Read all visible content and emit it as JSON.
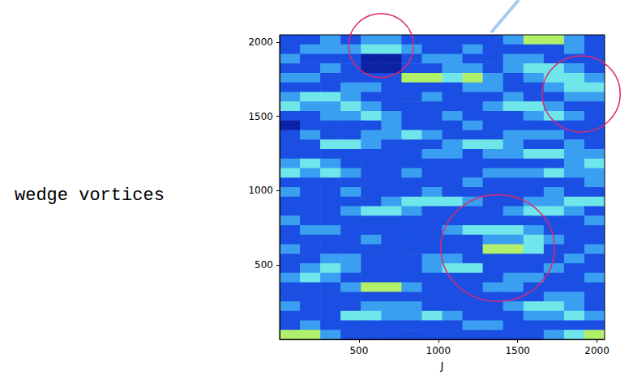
{
  "chart_data": {
    "type": "heatmap",
    "annotation": "wedge vortices",
    "xlabel": "J",
    "xlim": [
      0,
      2048
    ],
    "ylim": [
      0,
      2048
    ],
    "xticks": [
      500,
      1000,
      1500,
      2000
    ],
    "yticks": [
      500,
      1000,
      1500,
      2000
    ],
    "grid": false,
    "x": [
      64,
      192,
      320,
      448,
      576,
      704,
      832,
      960,
      1088,
      1216,
      1344,
      1472,
      1600,
      1728,
      1856,
      1984
    ],
    "y": [
      2016,
      1952,
      1888,
      1824,
      1760,
      1696,
      1632,
      1568,
      1504,
      1440,
      1376,
      1312,
      1248,
      1184,
      1120,
      1056,
      992,
      928,
      864,
      800,
      736,
      672,
      608,
      544,
      480,
      416,
      352,
      288,
      224,
      160,
      96,
      32
    ],
    "cells": [
      [
        1,
        1,
        2,
        1,
        2,
        2,
        1,
        1,
        1,
        1,
        1,
        2,
        4,
        4,
        2,
        1
      ],
      [
        1,
        2,
        2,
        2,
        3,
        3,
        2,
        1,
        1,
        2,
        1,
        1,
        1,
        1,
        2,
        1
      ],
      [
        2,
        1,
        1,
        1,
        0,
        0,
        1,
        2,
        2,
        1,
        1,
        2,
        2,
        1,
        1,
        1
      ],
      [
        1,
        1,
        2,
        1,
        0,
        0,
        1,
        1,
        2,
        2,
        1,
        2,
        3,
        3,
        2,
        1
      ],
      [
        2,
        2,
        1,
        1,
        1,
        1,
        4,
        4,
        3,
        4,
        2,
        1,
        2,
        3,
        3,
        2
      ],
      [
        1,
        1,
        1,
        2,
        2,
        1,
        1,
        1,
        1,
        2,
        2,
        1,
        1,
        2,
        3,
        3
      ],
      [
        2,
        3,
        3,
        2,
        1,
        1,
        1,
        2,
        1,
        1,
        1,
        2,
        1,
        1,
        2,
        2
      ],
      [
        3,
        2,
        2,
        3,
        2,
        1,
        1,
        1,
        1,
        1,
        2,
        3,
        3,
        2,
        1,
        1
      ],
      [
        1,
        1,
        2,
        2,
        3,
        2,
        1,
        1,
        2,
        1,
        1,
        1,
        2,
        3,
        2,
        1
      ],
      [
        0,
        1,
        1,
        1,
        1,
        2,
        1,
        1,
        1,
        2,
        1,
        1,
        1,
        1,
        1,
        1
      ],
      [
        1,
        2,
        1,
        1,
        2,
        2,
        3,
        2,
        1,
        1,
        1,
        2,
        2,
        2,
        1,
        1
      ],
      [
        1,
        1,
        3,
        3,
        2,
        1,
        1,
        1,
        2,
        3,
        3,
        2,
        1,
        1,
        2,
        1
      ],
      [
        1,
        1,
        1,
        1,
        1,
        1,
        1,
        2,
        2,
        1,
        2,
        2,
        3,
        3,
        2,
        2
      ],
      [
        2,
        3,
        2,
        1,
        1,
        1,
        1,
        1,
        1,
        1,
        1,
        1,
        1,
        1,
        2,
        3
      ],
      [
        3,
        2,
        3,
        2,
        1,
        1,
        2,
        1,
        1,
        1,
        2,
        2,
        2,
        3,
        2,
        2
      ],
      [
        1,
        1,
        1,
        1,
        1,
        1,
        1,
        1,
        1,
        2,
        1,
        1,
        1,
        1,
        1,
        2
      ],
      [
        2,
        1,
        1,
        2,
        1,
        1,
        1,
        2,
        1,
        1,
        1,
        1,
        1,
        2,
        1,
        1
      ],
      [
        1,
        1,
        1,
        1,
        1,
        2,
        3,
        3,
        3,
        2,
        1,
        1,
        2,
        2,
        3,
        3
      ],
      [
        1,
        1,
        1,
        2,
        3,
        3,
        2,
        1,
        1,
        1,
        1,
        2,
        3,
        3,
        2,
        1
      ],
      [
        2,
        1,
        1,
        1,
        1,
        1,
        1,
        1,
        1,
        1,
        1,
        1,
        1,
        1,
        1,
        2
      ],
      [
        1,
        2,
        2,
        1,
        1,
        1,
        1,
        1,
        2,
        3,
        3,
        3,
        2,
        1,
        1,
        1
      ],
      [
        1,
        1,
        1,
        1,
        2,
        1,
        1,
        1,
        1,
        1,
        2,
        2,
        3,
        2,
        1,
        1
      ],
      [
        2,
        1,
        1,
        1,
        1,
        1,
        1,
        1,
        1,
        1,
        4,
        4,
        3,
        1,
        1,
        2
      ],
      [
        1,
        1,
        2,
        2,
        1,
        1,
        1,
        2,
        2,
        1,
        1,
        1,
        1,
        1,
        2,
        1
      ],
      [
        1,
        2,
        3,
        2,
        1,
        1,
        1,
        2,
        3,
        3,
        1,
        1,
        1,
        2,
        1,
        1
      ],
      [
        2,
        3,
        2,
        1,
        1,
        1,
        1,
        1,
        1,
        1,
        1,
        2,
        2,
        1,
        1,
        2
      ],
      [
        1,
        1,
        1,
        2,
        4,
        4,
        2,
        1,
        1,
        1,
        2,
        2,
        1,
        1,
        1,
        1
      ],
      [
        1,
        1,
        1,
        1,
        1,
        1,
        1,
        1,
        1,
        1,
        1,
        1,
        1,
        2,
        2,
        1
      ],
      [
        2,
        1,
        1,
        1,
        2,
        2,
        2,
        1,
        1,
        1,
        1,
        2,
        3,
        3,
        2,
        1
      ],
      [
        1,
        1,
        1,
        3,
        3,
        2,
        2,
        3,
        2,
        1,
        1,
        1,
        2,
        2,
        3,
        2
      ],
      [
        1,
        2,
        1,
        1,
        1,
        1,
        1,
        1,
        1,
        2,
        2,
        1,
        1,
        1,
        1,
        1
      ],
      [
        4,
        4,
        2,
        1,
        1,
        1,
        1,
        1,
        1,
        1,
        1,
        1,
        1,
        2,
        3,
        4
      ]
    ]
  }
}
